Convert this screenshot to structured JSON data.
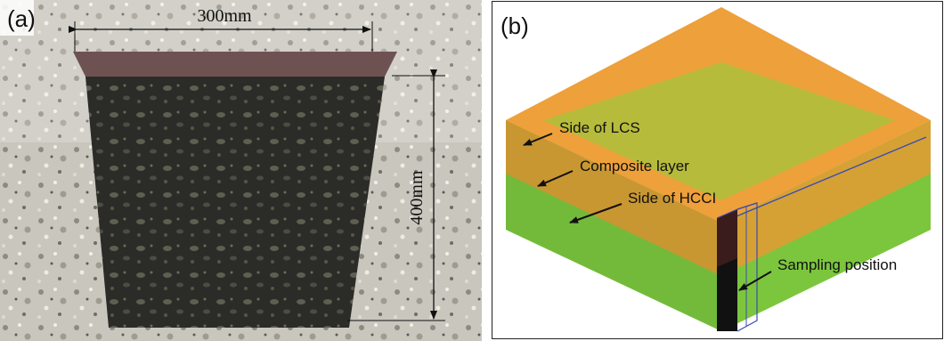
{
  "panels": {
    "a": {
      "label": "(a)",
      "width_label": "300mm",
      "height_label": "400mm"
    },
    "b": {
      "label": "(b)",
      "annotations": [
        "Side of LCS",
        "Composite layer",
        "Side of HCCI",
        "Sampling position"
      ]
    }
  }
}
